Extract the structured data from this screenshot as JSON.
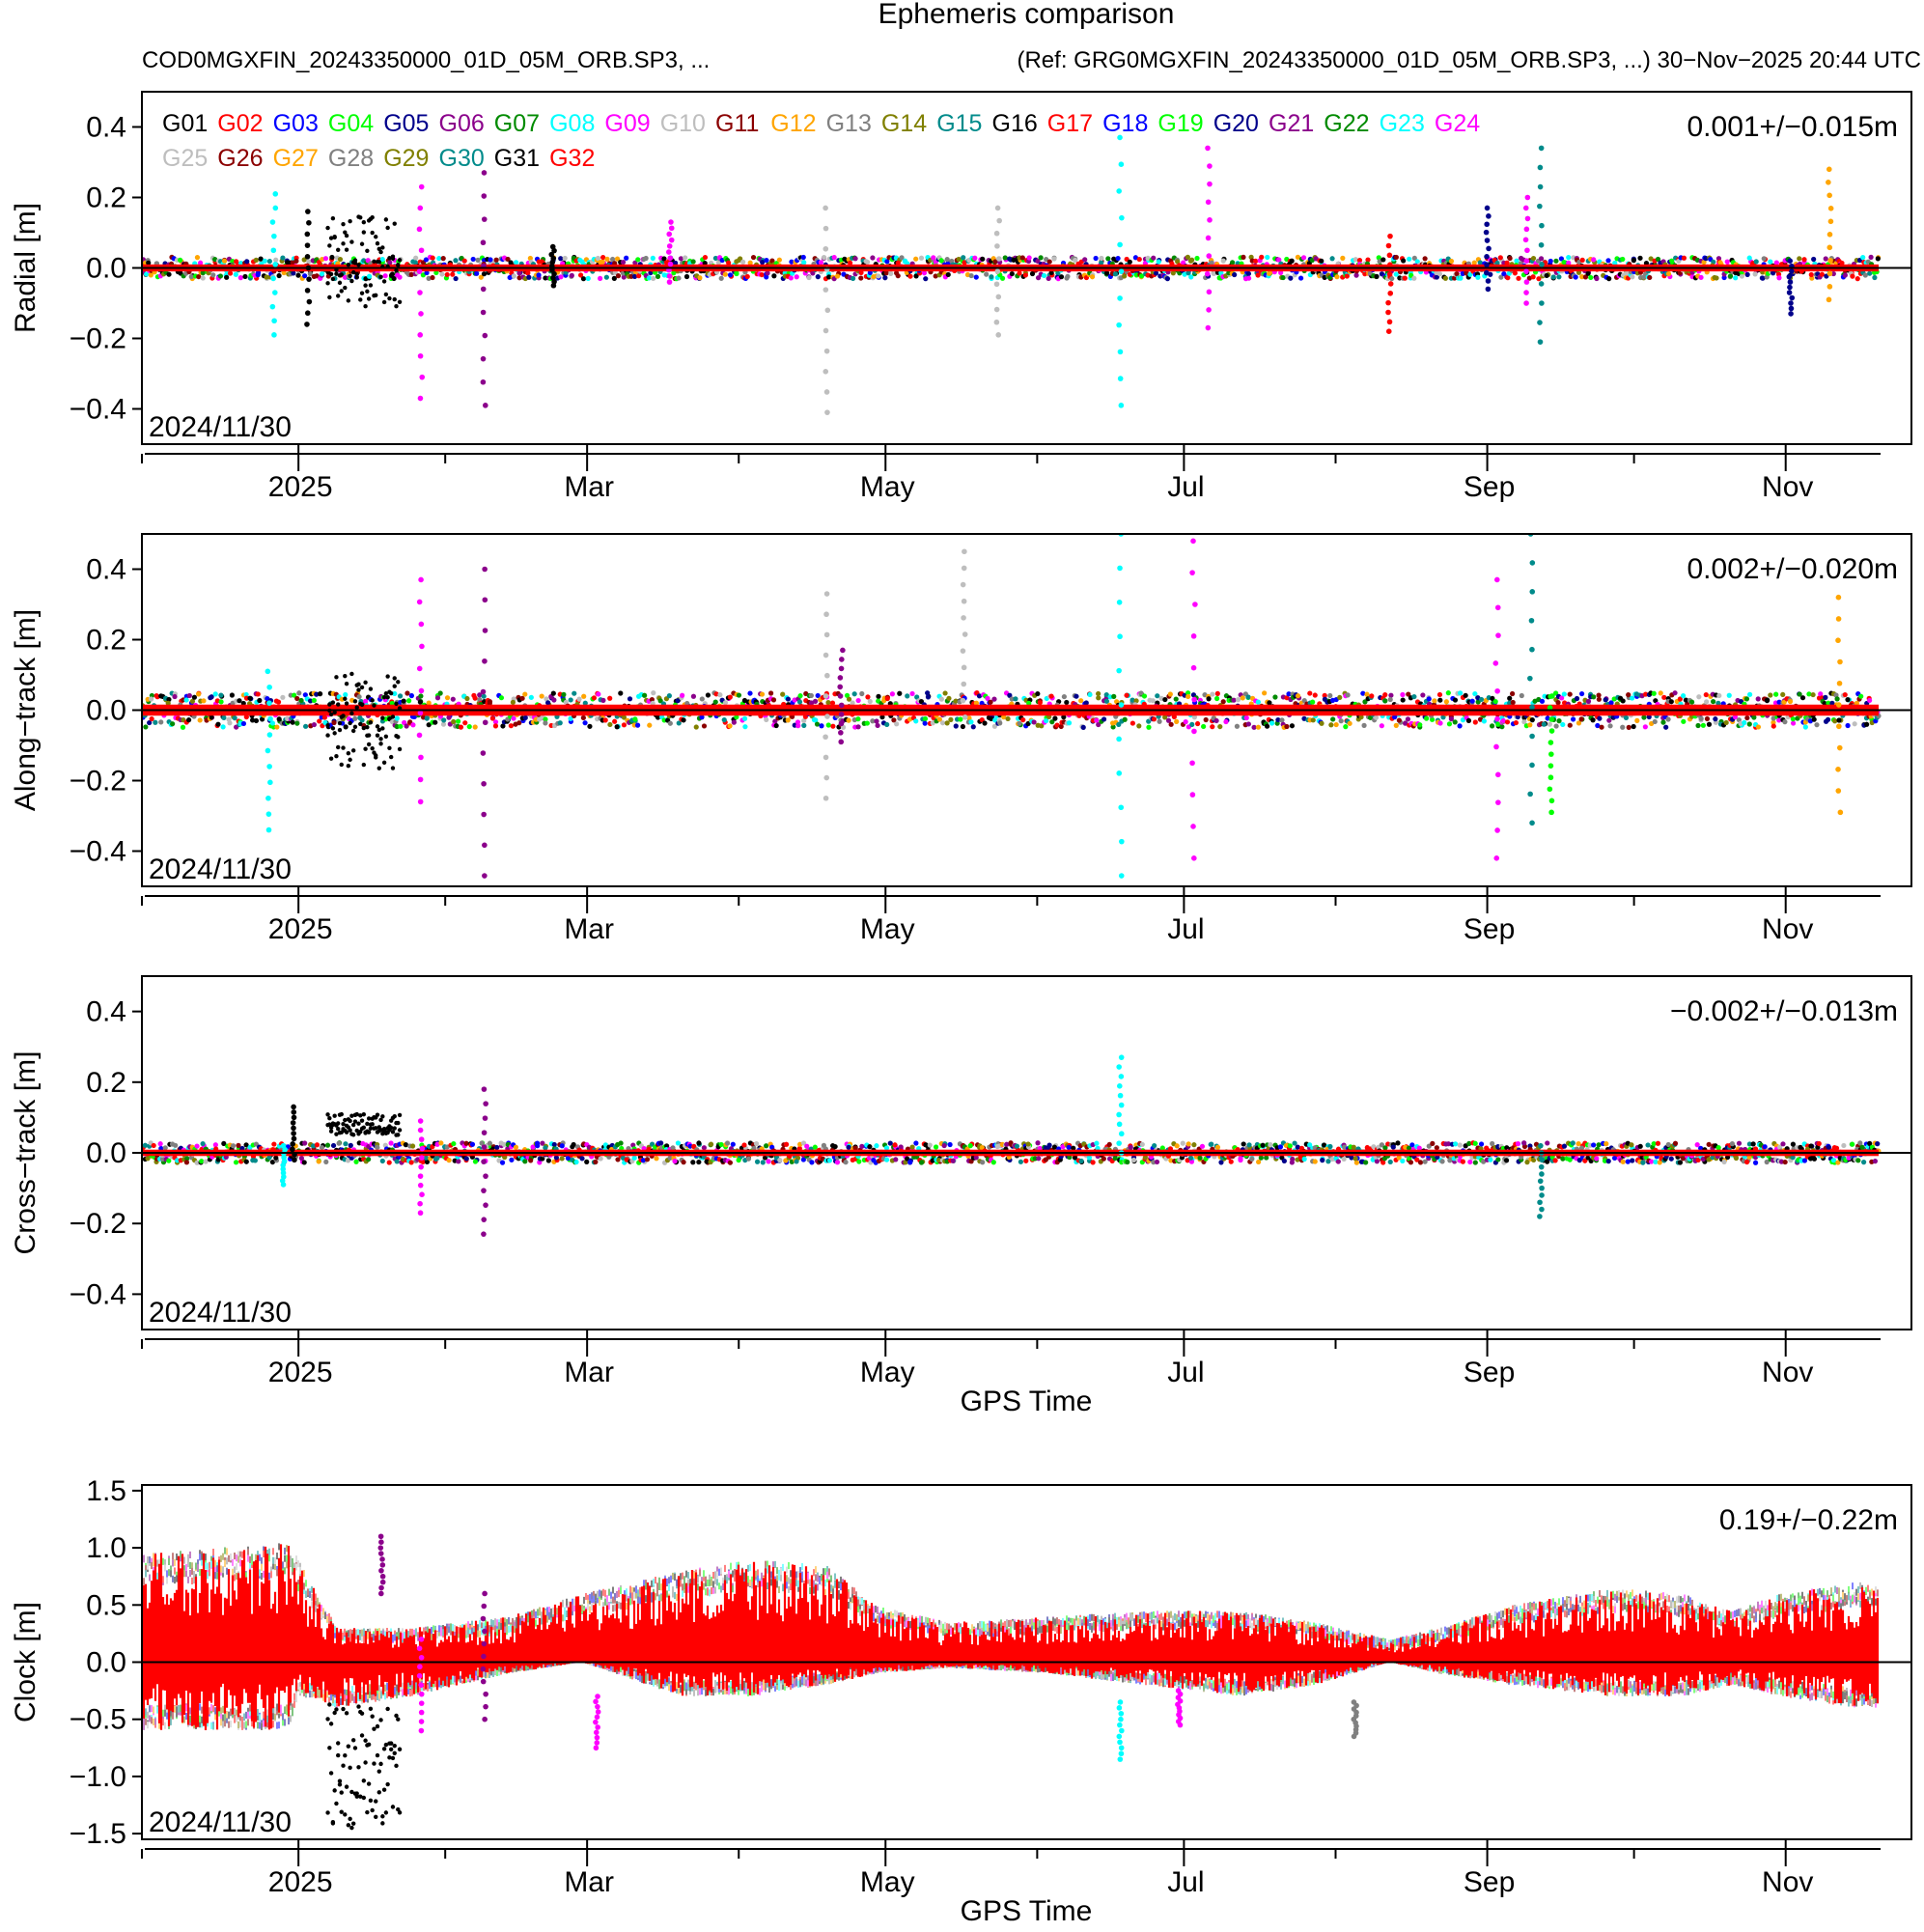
{
  "chart_data": {
    "type": "scatter",
    "title": "Ephemeris comparison",
    "subtitle_left": "COD0MGXFIN_20243350000_01D_05M_ORB.SP3, ...",
    "subtitle_right": "(Ref: GRG0MGXFIN_20243350000_01D_05M_ORB.SP3, ...) 30−Nov−2025 20:44 UTC",
    "x_ticks": [
      "2025",
      "Mar",
      "May",
      "Jul",
      "Sep",
      "Nov"
    ],
    "xlabel": "GPS Time",
    "date_label": "2024/11/30",
    "legend": [
      {
        "name": "G01",
        "color": "#000000"
      },
      {
        "name": "G02",
        "color": "#ff0000"
      },
      {
        "name": "G03",
        "color": "#0000ff"
      },
      {
        "name": "G04",
        "color": "#00ff00"
      },
      {
        "name": "G05",
        "color": "#00008b"
      },
      {
        "name": "G06",
        "color": "#8b008b"
      },
      {
        "name": "G07",
        "color": "#008b00"
      },
      {
        "name": "G08",
        "color": "#00ffff"
      },
      {
        "name": "G09",
        "color": "#ff00ff"
      },
      {
        "name": "G10",
        "color": "#bebebe"
      },
      {
        "name": "G11",
        "color": "#8b0000"
      },
      {
        "name": "G12",
        "color": "#ffa500"
      },
      {
        "name": "G13",
        "color": "#808080"
      },
      {
        "name": "G14",
        "color": "#808000"
      },
      {
        "name": "G15",
        "color": "#008b8b"
      },
      {
        "name": "G16",
        "color": "#000000"
      },
      {
        "name": "G17",
        "color": "#ff0000"
      },
      {
        "name": "G18",
        "color": "#0000ff"
      },
      {
        "name": "G19",
        "color": "#00ff00"
      },
      {
        "name": "G20",
        "color": "#00008b"
      },
      {
        "name": "G21",
        "color": "#8b008b"
      },
      {
        "name": "G22",
        "color": "#008b00"
      },
      {
        "name": "G23",
        "color": "#00ffff"
      },
      {
        "name": "G24",
        "color": "#ff00ff"
      },
      {
        "name": "G25",
        "color": "#bebebe"
      },
      {
        "name": "G26",
        "color": "#8b0000"
      },
      {
        "name": "G27",
        "color": "#ffa500"
      },
      {
        "name": "G28",
        "color": "#808080"
      },
      {
        "name": "G29",
        "color": "#808000"
      },
      {
        "name": "G30",
        "color": "#008b8b"
      },
      {
        "name": "G31",
        "color": "#000000"
      },
      {
        "name": "G32",
        "color": "#ff0000"
      }
    ],
    "panels": [
      {
        "ylabel": "Radial [m]",
        "ylim": [
          -0.5,
          0.5
        ],
        "y_ticks": [
          0.4,
          0.2,
          0.0,
          -0.2,
          -0.4
        ],
        "y_tick_labels": [
          "0.4",
          "0.2",
          "0.0",
          "−0.2",
          "−0.4"
        ],
        "stat": "0.001+/−0.015m",
        "spread": 0.022,
        "show_xlabel": false,
        "spikes": [
          {
            "day": 27,
            "color": "#00ffff",
            "min": -0.19,
            "max": 0.21
          },
          {
            "day": 34,
            "color": "#000000",
            "min": -0.16,
            "max": 0.16
          },
          {
            "day": 57,
            "color": "#ff00ff",
            "min": -0.37,
            "max": 0.23
          },
          {
            "day": 70,
            "color": "#8b008b",
            "min": -0.39,
            "max": 0.27
          },
          {
            "day": 84,
            "color": "#000000",
            "min": -0.05,
            "max": 0.06
          },
          {
            "day": 108,
            "color": "#ff00ff",
            "min": -0.04,
            "max": 0.13
          },
          {
            "day": 140,
            "color": "#bebebe",
            "min": -0.41,
            "max": 0.17
          },
          {
            "day": 175,
            "color": "#bebebe",
            "min": -0.19,
            "max": 0.17
          },
          {
            "day": 200,
            "color": "#00ffff",
            "min": -0.39,
            "max": 0.37
          },
          {
            "day": 218,
            "color": "#ff00ff",
            "min": -0.17,
            "max": 0.34
          },
          {
            "day": 255,
            "color": "#ff0000",
            "min": -0.18,
            "max": 0.09
          },
          {
            "day": 275,
            "color": "#00008b",
            "min": -0.06,
            "max": 0.17
          },
          {
            "day": 283,
            "color": "#ff00ff",
            "min": -0.1,
            "max": 0.2
          },
          {
            "day": 286,
            "color": "#008b8b",
            "min": -0.21,
            "max": 0.34
          },
          {
            "day": 337,
            "color": "#00008b",
            "min": -0.13,
            "max": 0.02
          },
          {
            "day": 345,
            "color": "#ffa500",
            "min": -0.09,
            "max": 0.28
          }
        ],
        "blocks": [
          {
            "start": 38,
            "end": 53,
            "color": "#000000",
            "min": -0.11,
            "max": 0.15
          }
        ]
      },
      {
        "ylabel": "Along−track [m]",
        "ylim": [
          -0.5,
          0.5
        ],
        "y_ticks": [
          0.4,
          0.2,
          0.0,
          -0.2,
          -0.4
        ],
        "y_tick_labels": [
          "0.4",
          "0.2",
          "0.0",
          "−0.2",
          "−0.4"
        ],
        "stat": "0.002+/−0.020m",
        "spread": 0.035,
        "show_xlabel": false,
        "spikes": [
          {
            "day": 26,
            "color": "#00ffff",
            "min": -0.34,
            "max": 0.11
          },
          {
            "day": 57,
            "color": "#ff00ff",
            "min": -0.26,
            "max": 0.37
          },
          {
            "day": 70,
            "color": "#8b008b",
            "min": -0.47,
            "max": 0.4
          },
          {
            "day": 140,
            "color": "#bebebe",
            "min": -0.25,
            "max": 0.33
          },
          {
            "day": 143,
            "color": "#8b008b",
            "min": -0.09,
            "max": 0.17
          },
          {
            "day": 168,
            "color": "#bebebe",
            "min": -0.02,
            "max": 0.45
          },
          {
            "day": 200,
            "color": "#00ffff",
            "min": -0.47,
            "max": 0.5
          },
          {
            "day": 215,
            "color": "#ff00ff",
            "min": -0.42,
            "max": 0.48
          },
          {
            "day": 277,
            "color": "#ff00ff",
            "min": -0.42,
            "max": 0.37
          },
          {
            "day": 284,
            "color": "#008b8b",
            "min": -0.32,
            "max": 0.5
          },
          {
            "day": 288,
            "color": "#00ff00",
            "min": -0.29,
            "max": 0.04
          },
          {
            "day": 347,
            "color": "#ffa500",
            "min": -0.29,
            "max": 0.32
          }
        ],
        "blocks": [
          {
            "start": 38,
            "end": 53,
            "color": "#000000",
            "min": -0.17,
            "max": 0.11
          }
        ]
      },
      {
        "ylabel": "Cross−track [m]",
        "ylim": [
          -0.5,
          0.5
        ],
        "y_ticks": [
          0.4,
          0.2,
          0.0,
          -0.2,
          -0.4
        ],
        "y_tick_labels": [
          "0.4",
          "0.2",
          "0.0",
          "−0.2",
          "−0.4"
        ],
        "stat": "−0.002+/−0.013m",
        "spread": 0.02,
        "show_xlabel": true,
        "spikes": [
          {
            "day": 29,
            "color": "#00ffff",
            "min": -0.09,
            "max": 0.02
          },
          {
            "day": 31,
            "color": "#000000",
            "min": -0.02,
            "max": 0.13
          },
          {
            "day": 57,
            "color": "#ff00ff",
            "min": -0.17,
            "max": 0.09
          },
          {
            "day": 70,
            "color": "#8b008b",
            "min": -0.23,
            "max": 0.18
          },
          {
            "day": 200,
            "color": "#00ffff",
            "min": 0.0,
            "max": 0.27
          },
          {
            "day": 286,
            "color": "#008b8b",
            "min": -0.18,
            "max": 0.02
          }
        ],
        "blocks": [
          {
            "start": 38,
            "end": 53,
            "color": "#000000",
            "min": 0.05,
            "max": 0.11
          }
        ]
      },
      {
        "ylabel": "Clock [m]",
        "ylim": [
          -1.55,
          1.55
        ],
        "y_ticks": [
          1.5,
          1.0,
          0.5,
          0.0,
          -0.5,
          -1.0,
          -1.5
        ],
        "y_tick_labels": [
          "1.5",
          "1.0",
          "0.5",
          "0.0",
          "−0.5",
          "−1.0",
          "−1.5"
        ],
        "stat": "0.19+/−0.22m",
        "spread": 0.0,
        "show_xlabel": true,
        "envelope": [
          {
            "day": 0,
            "hi": 0.95,
            "lo": -0.6
          },
          {
            "day": 15,
            "hi": 1.0,
            "lo": -0.6
          },
          {
            "day": 30,
            "hi": 1.05,
            "lo": -0.6
          },
          {
            "day": 32,
            "hi": 0.9,
            "lo": -0.3
          },
          {
            "day": 40,
            "hi": 0.3,
            "lo": -0.4
          },
          {
            "day": 55,
            "hi": 0.3,
            "lo": -0.3
          },
          {
            "day": 75,
            "hi": 0.4,
            "lo": -0.1
          },
          {
            "day": 90,
            "hi": 0.6,
            "lo": 0.0
          },
          {
            "day": 110,
            "hi": 0.8,
            "lo": -0.3
          },
          {
            "day": 125,
            "hi": 0.9,
            "lo": -0.3
          },
          {
            "day": 140,
            "hi": 0.85,
            "lo": -0.2
          },
          {
            "day": 150,
            "hi": 0.5,
            "lo": -0.1
          },
          {
            "day": 165,
            "hi": 0.35,
            "lo": -0.05
          },
          {
            "day": 185,
            "hi": 0.4,
            "lo": -0.1
          },
          {
            "day": 205,
            "hi": 0.45,
            "lo": -0.2
          },
          {
            "day": 225,
            "hi": 0.45,
            "lo": -0.3
          },
          {
            "day": 240,
            "hi": 0.35,
            "lo": -0.2
          },
          {
            "day": 255,
            "hi": 0.2,
            "lo": 0.0
          },
          {
            "day": 265,
            "hi": 0.3,
            "lo": -0.1
          },
          {
            "day": 280,
            "hi": 0.5,
            "lo": -0.2
          },
          {
            "day": 300,
            "hi": 0.65,
            "lo": -0.3
          },
          {
            "day": 315,
            "hi": 0.6,
            "lo": -0.3
          },
          {
            "day": 325,
            "hi": 0.45,
            "lo": -0.2
          },
          {
            "day": 335,
            "hi": 0.6,
            "lo": -0.3
          },
          {
            "day": 350,
            "hi": 0.7,
            "lo": -0.4
          }
        ],
        "spikes": [
          {
            "day": 49,
            "color": "#8b008b",
            "min": 0.6,
            "max": 1.1
          },
          {
            "day": 57,
            "color": "#ff00ff",
            "min": -0.6,
            "max": 0.2
          },
          {
            "day": 70,
            "color": "#8b008b",
            "min": -0.5,
            "max": 0.6
          },
          {
            "day": 93,
            "color": "#ff00ff",
            "min": -0.75,
            "max": -0.3
          },
          {
            "day": 200,
            "color": "#00ffff",
            "min": -0.85,
            "max": -0.35
          },
          {
            "day": 212,
            "color": "#ff00ff",
            "min": -0.55,
            "max": -0.25
          },
          {
            "day": 248,
            "color": "#808080",
            "min": -0.65,
            "max": -0.35
          }
        ],
        "blocks": [
          {
            "start": 38,
            "end": 53,
            "color": "#000000",
            "min": -1.45,
            "max": -0.35
          }
        ]
      }
    ]
  }
}
